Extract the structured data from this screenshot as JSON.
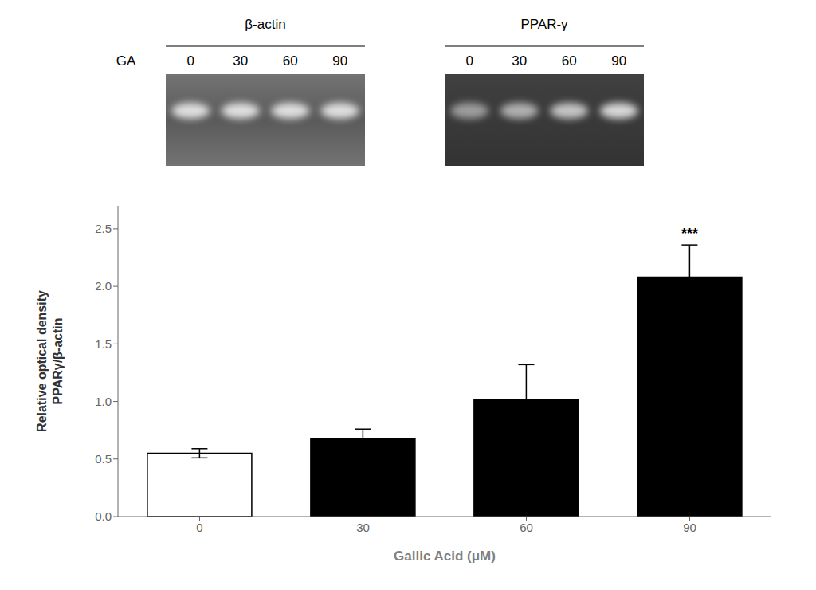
{
  "chart_data": {
    "type": "bar",
    "categories": [
      "0",
      "30",
      "60",
      "90"
    ],
    "values": [
      0.55,
      0.68,
      1.02,
      2.08
    ],
    "errors": [
      0.04,
      0.08,
      0.3,
      0.28
    ],
    "colors": [
      "white",
      "black",
      "black",
      "black"
    ],
    "xlabel": "Gallic Acid (μM)",
    "ylabel": "Relative optical density\nPPARγ/β-actin",
    "ylim": [
      0.0,
      2.7
    ],
    "yticks": [
      {
        "value": 0.0,
        "label": "0.0"
      },
      0.5,
      {
        "value": 1.0,
        "label": "1.0"
      },
      1.5,
      {
        "value": 2.0,
        "label": "2.0"
      },
      2.5
    ],
    "grid": false,
    "annotations": [
      {
        "text": "***",
        "category": "90"
      },
      {
        "text": "β-actin",
        "lanes": [
          "0",
          "30",
          "60",
          "90"
        ]
      },
      {
        "text": "PPAR-γ",
        "lanes": [
          "0",
          "30",
          "60",
          "90"
        ]
      },
      {
        "text": "GA"
      }
    ]
  }
}
